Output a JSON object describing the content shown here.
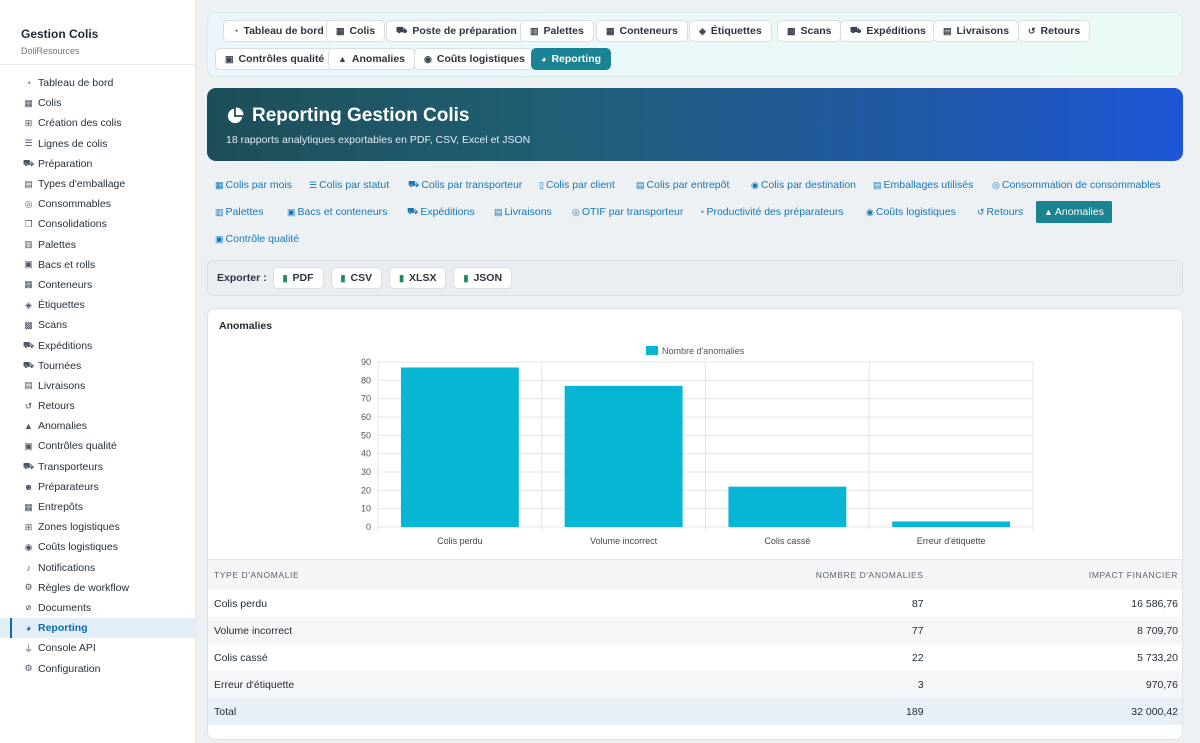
{
  "sidebar": {
    "title": "Gestion Colis",
    "subtitle": "DoliResources",
    "items": [
      {
        "label": "Tableau de bord",
        "icon": "dashboard-icon",
        "glyph": "◔"
      },
      {
        "label": "Colis",
        "icon": "box-icon",
        "glyph": "▦"
      },
      {
        "label": "Création des colis",
        "icon": "plus-square-icon",
        "glyph": "⊞"
      },
      {
        "label": "Lignes de colis",
        "icon": "list-icon",
        "glyph": "☰"
      },
      {
        "label": "Préparation",
        "icon": "dolly-icon",
        "glyph": "⛟"
      },
      {
        "label": "Types d'emballage",
        "icon": "boxes-icon",
        "glyph": "▤"
      },
      {
        "label": "Consommables",
        "icon": "tape-icon",
        "glyph": "◎"
      },
      {
        "label": "Consolidations",
        "icon": "layers-icon",
        "glyph": "❐"
      },
      {
        "label": "Palettes",
        "icon": "pallet-icon",
        "glyph": "▥"
      },
      {
        "label": "Bacs et rolls",
        "icon": "dolly-flatbed-icon",
        "glyph": "▣"
      },
      {
        "label": "Conteneurs",
        "icon": "container-icon",
        "glyph": "▦"
      },
      {
        "label": "Étiquettes",
        "icon": "tags-icon",
        "glyph": "◈"
      },
      {
        "label": "Scans",
        "icon": "barcode-icon",
        "glyph": "▩"
      },
      {
        "label": "Expéditions",
        "icon": "truck-icon",
        "glyph": "⛟"
      },
      {
        "label": "Tournées",
        "icon": "route-icon",
        "glyph": "⛟"
      },
      {
        "label": "Livraisons",
        "icon": "delivery-icon",
        "glyph": "▤"
      },
      {
        "label": "Retours",
        "icon": "undo-icon",
        "glyph": "↺"
      },
      {
        "label": "Anomalies",
        "icon": "warning-icon",
        "glyph": "▲"
      },
      {
        "label": "Contrôles qualité",
        "icon": "clipboard-check-icon",
        "glyph": "▣"
      },
      {
        "label": "Transporteurs",
        "icon": "truck-icon",
        "glyph": "⛟"
      },
      {
        "label": "Préparateurs",
        "icon": "users-icon",
        "glyph": "☻"
      },
      {
        "label": "Entrepôts",
        "icon": "warehouse-icon",
        "glyph": "▦"
      },
      {
        "label": "Zones logistiques",
        "icon": "grid-icon",
        "glyph": "⊞"
      },
      {
        "label": "Coûts logistiques",
        "icon": "coins-icon",
        "glyph": "◉"
      },
      {
        "label": "Notifications",
        "icon": "bell-icon",
        "glyph": "♪"
      },
      {
        "label": "Règles de workflow",
        "icon": "cogs-icon",
        "glyph": "⚙"
      },
      {
        "label": "Documents",
        "icon": "paperclip-icon",
        "glyph": "⌀"
      },
      {
        "label": "Reporting",
        "icon": "chart-pie-icon",
        "glyph": "◕",
        "active": true
      },
      {
        "label": "Console API",
        "icon": "plug-icon",
        "glyph": "⏚"
      },
      {
        "label": "Configuration",
        "icon": "gear-icon",
        "glyph": "⚙"
      }
    ]
  },
  "topnav": [
    {
      "label": "Tableau de bord",
      "icon": "dashboard-icon",
      "glyph": "◔"
    },
    {
      "label": "Colis",
      "icon": "box-icon",
      "glyph": "▦"
    },
    {
      "label": "Poste de préparation",
      "icon": "dolly-icon",
      "glyph": "⛟"
    },
    {
      "label": "Palettes",
      "icon": "pallet-icon",
      "glyph": "▥"
    },
    {
      "label": "Conteneurs",
      "icon": "container-icon",
      "glyph": "▦"
    },
    {
      "label": "Étiquettes",
      "icon": "tags-icon",
      "glyph": "◈"
    },
    {
      "label": "Scans",
      "icon": "barcode-icon",
      "glyph": "▩"
    },
    {
      "label": "Expéditions",
      "icon": "truck-icon",
      "glyph": "⛟"
    },
    {
      "label": "Livraisons",
      "icon": "delivery-icon",
      "glyph": "▤"
    },
    {
      "label": "Retours",
      "icon": "undo-icon",
      "glyph": "↺"
    },
    {
      "label": "Contrôles qualité",
      "icon": "clipboard-check-icon",
      "glyph": "▣"
    },
    {
      "label": "Anomalies",
      "icon": "warning-icon",
      "glyph": "▲"
    },
    {
      "label": "Coûts logistiques",
      "icon": "coins-icon",
      "glyph": "◉"
    },
    {
      "label": "Reporting",
      "icon": "chart-pie-icon",
      "glyph": "◕",
      "active": true
    }
  ],
  "hero": {
    "title": "Reporting Gestion Colis",
    "subtitle": "18 rapports analytiques exportables en PDF, CSV, Excel et JSON"
  },
  "reports": [
    {
      "label": "Colis par mois",
      "icon": "calendar-icon",
      "glyph": "▦"
    },
    {
      "label": "Colis par statut",
      "icon": "list-icon",
      "glyph": "☰"
    },
    {
      "label": "Colis par transporteur",
      "icon": "truck-icon",
      "glyph": "⛟"
    },
    {
      "label": "Colis par client",
      "icon": "building-icon",
      "glyph": "▯"
    },
    {
      "label": "Colis par entrepôt",
      "icon": "warehouse-icon",
      "glyph": "▤"
    },
    {
      "label": "Colis par destination",
      "icon": "map-marker-icon",
      "glyph": "◉"
    },
    {
      "label": "Emballages utilisés",
      "icon": "boxes-icon",
      "glyph": "▤"
    },
    {
      "label": "Consommation de consommables",
      "icon": "tape-icon",
      "glyph": "◎"
    },
    {
      "label": "Palettes",
      "icon": "pallet-icon",
      "glyph": "▥"
    },
    {
      "label": "Bacs et conteneurs",
      "icon": "dolly-flatbed-icon",
      "glyph": "▣"
    },
    {
      "label": "Expéditions",
      "icon": "truck-icon",
      "glyph": "⛟"
    },
    {
      "label": "Livraisons",
      "icon": "delivery-icon",
      "glyph": "▤"
    },
    {
      "label": "OTIF par transporteur",
      "icon": "target-icon",
      "glyph": "◎"
    },
    {
      "label": "Productivité des préparateurs",
      "icon": "gauge-icon",
      "glyph": "◔"
    },
    {
      "label": "Coûts logistiques",
      "icon": "coins-icon",
      "glyph": "◉"
    },
    {
      "label": "Retours",
      "icon": "undo-icon",
      "glyph": "↺"
    },
    {
      "label": "Anomalies",
      "icon": "warning-icon",
      "glyph": "▲",
      "active": true
    },
    {
      "label": "Contrôle qualité",
      "icon": "clipboard-check-icon",
      "glyph": "▣"
    }
  ],
  "export": {
    "label": "Exporter :",
    "buttons": [
      {
        "label": "PDF",
        "icon": "file-pdf-icon"
      },
      {
        "label": "CSV",
        "icon": "file-csv-icon"
      },
      {
        "label": "XLSX",
        "icon": "file-excel-icon"
      },
      {
        "label": "JSON",
        "icon": "file-code-icon"
      }
    ]
  },
  "card": {
    "title": "Anomalies"
  },
  "chart_data": {
    "type": "bar",
    "categories": [
      "Colis perdu",
      "Volume incorrect",
      "Colis cassé",
      "Erreur d'étiquette"
    ],
    "series": [
      {
        "name": "Nombre d'anomalies",
        "values": [
          87,
          77,
          22,
          3
        ],
        "color": "#06b6d4"
      }
    ],
    "ylim": [
      0,
      90
    ],
    "yticks": [
      0,
      10,
      20,
      30,
      40,
      50,
      60,
      70,
      80,
      90
    ],
    "grid": true,
    "legend": "top-center"
  },
  "table": {
    "headers": [
      "TYPE D'ANOMALIE",
      "NOMBRE D'ANOMALIES",
      "IMPACT FINANCIER"
    ],
    "rows": [
      [
        "Colis perdu",
        "87",
        "16 586,76"
      ],
      [
        "Volume incorrect",
        "77",
        "8 709,70"
      ],
      [
        "Colis cassé",
        "22",
        "5 733,20"
      ],
      [
        "Erreur d'étiquette",
        "3",
        "970,76"
      ]
    ],
    "total": [
      "Total",
      "189",
      "32 000,42"
    ]
  }
}
